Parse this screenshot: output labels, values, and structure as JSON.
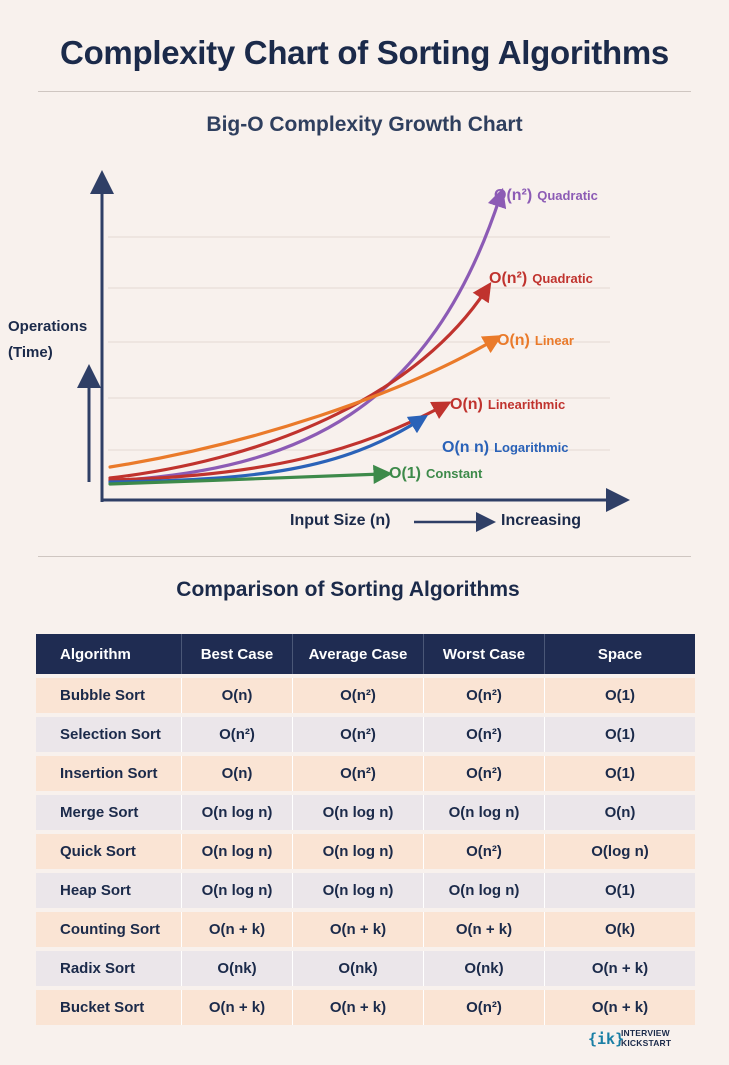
{
  "title": "Complexity Chart of Sorting Algorithms",
  "chart_data": {
    "type": "line",
    "title": "Big-O Complexity Growth Chart",
    "ylabel": "Operations\n(Time)",
    "xlabel": "Input Size (n)",
    "xlabel_direction": "Increasing",
    "axis_ticks": false,
    "grid": true,
    "series": [
      {
        "label": "O(n²) Quadratic",
        "color": "#8c5bb5"
      },
      {
        "label": "O(n²) Quadratic",
        "color": "#c0332e"
      },
      {
        "label": "O(n) Linear",
        "color": "#ea7a2a"
      },
      {
        "label": "O(n) Linearithmic",
        "color": "#c0332e"
      },
      {
        "label": "O(n n) Logarithmic",
        "color": "#2a62b8"
      },
      {
        "label": "O(1) Constant",
        "color": "#3d8a4a"
      }
    ]
  },
  "table": {
    "title": "Comparison of Sorting Algorithms",
    "headers": [
      "Algorithm",
      "Best Case",
      "Average Case",
      "Worst Case",
      "Space"
    ],
    "rows": [
      [
        "Bubble Sort",
        "O(n)",
        "O(n²)",
        "O(n²)",
        "O(1)"
      ],
      [
        "Selection Sort",
        "O(n²)",
        "O(n²)",
        "O(n²)",
        "O(1)"
      ],
      [
        "Insertion Sort",
        "O(n)",
        "O(n²)",
        "O(n²)",
        "O(1)"
      ],
      [
        "Merge Sort",
        "O(n log n)",
        "O(n log n)",
        "O(n log n)",
        "O(n)"
      ],
      [
        "Quick Sort",
        "O(n log n)",
        "O(n log n)",
        "O(n²)",
        "O(log n)"
      ],
      [
        "Heap Sort",
        "O(n log n)",
        "O(n log n)",
        "O(n log n)",
        "O(1)"
      ],
      [
        "Counting Sort",
        "O(n + k)",
        "O(n + k)",
        "O(n + k)",
        "O(k)"
      ],
      [
        "Radix Sort",
        "O(nk)",
        "O(nk)",
        "O(nk)",
        "O(n + k)"
      ],
      [
        "Bucket Sort",
        "O(n + k)",
        "O(n + k)",
        "O(n²)",
        "O(n + k)"
      ]
    ]
  },
  "brand": {
    "mark": "{ik}",
    "name": "INTERVIEW\nKICKSTART"
  },
  "colors": {
    "header_bg": "#1f2c52",
    "row_peach": "#fae4d4",
    "row_grey": "#ebe6ea",
    "axis": "#2f3f66"
  }
}
